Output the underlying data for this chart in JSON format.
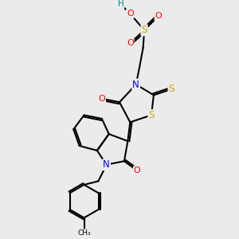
{
  "bg_color": "#ebebeb",
  "atom_colors": {
    "C": "#000000",
    "N": "#0000ff",
    "O": "#ff0000",
    "S": "#ccaa00",
    "H": "#008888"
  },
  "bond_color": "#000000",
  "bond_width": 1.5,
  "dbo": 0.07,
  "figsize": [
    3.0,
    3.0
  ],
  "dpi": 100,
  "xlim": [
    0,
    10
  ],
  "ylim": [
    0,
    10
  ]
}
